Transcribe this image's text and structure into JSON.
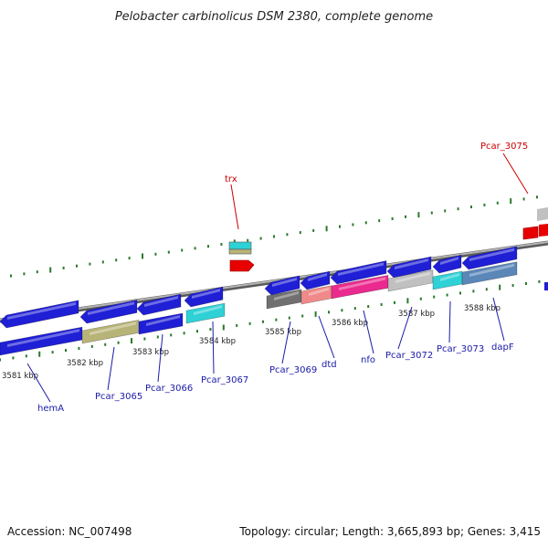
{
  "title": "Pelobacter carbinolicus DSM 2380, complete genome",
  "footer": {
    "accession": "Accession: NC_007498",
    "topology": "Topology: circular; Length: 3,665,893 bp; Genes: 3,415"
  },
  "colors": {
    "backbone": "#808080",
    "ticks": "#2a7a2a",
    "gene_label": "#1a1aa8",
    "highlight_label": "#cc0000",
    "gene_blue": "#1f1fd6",
    "gene_khaki": "#b8b478",
    "gene_cyan": "#2ed1d6",
    "gene_gray": "#c0c0c0",
    "gene_dark": "#707070",
    "gene_pink": "#f08a8a",
    "gene_magenta": "#ea2a8e",
    "gene_steel": "#5a86b8",
    "gene_red": "#e80000"
  },
  "scale_labels": [
    "3581 kbp",
    "3582 kbp",
    "3583 kbp",
    "3584 kbp",
    "3585 kbp",
    "3586 kbp",
    "3587 kbp",
    "3588 kbp"
  ],
  "gene_labels": [
    "hemA",
    "Pcar_3065",
    "Pcar_3066",
    "Pcar_3067",
    "Pcar_3069",
    "dtd",
    "nfo",
    "Pcar_3072",
    "Pcar_3073",
    "dapF"
  ],
  "top_labels": [
    "trx",
    "Pcar_3075"
  ]
}
